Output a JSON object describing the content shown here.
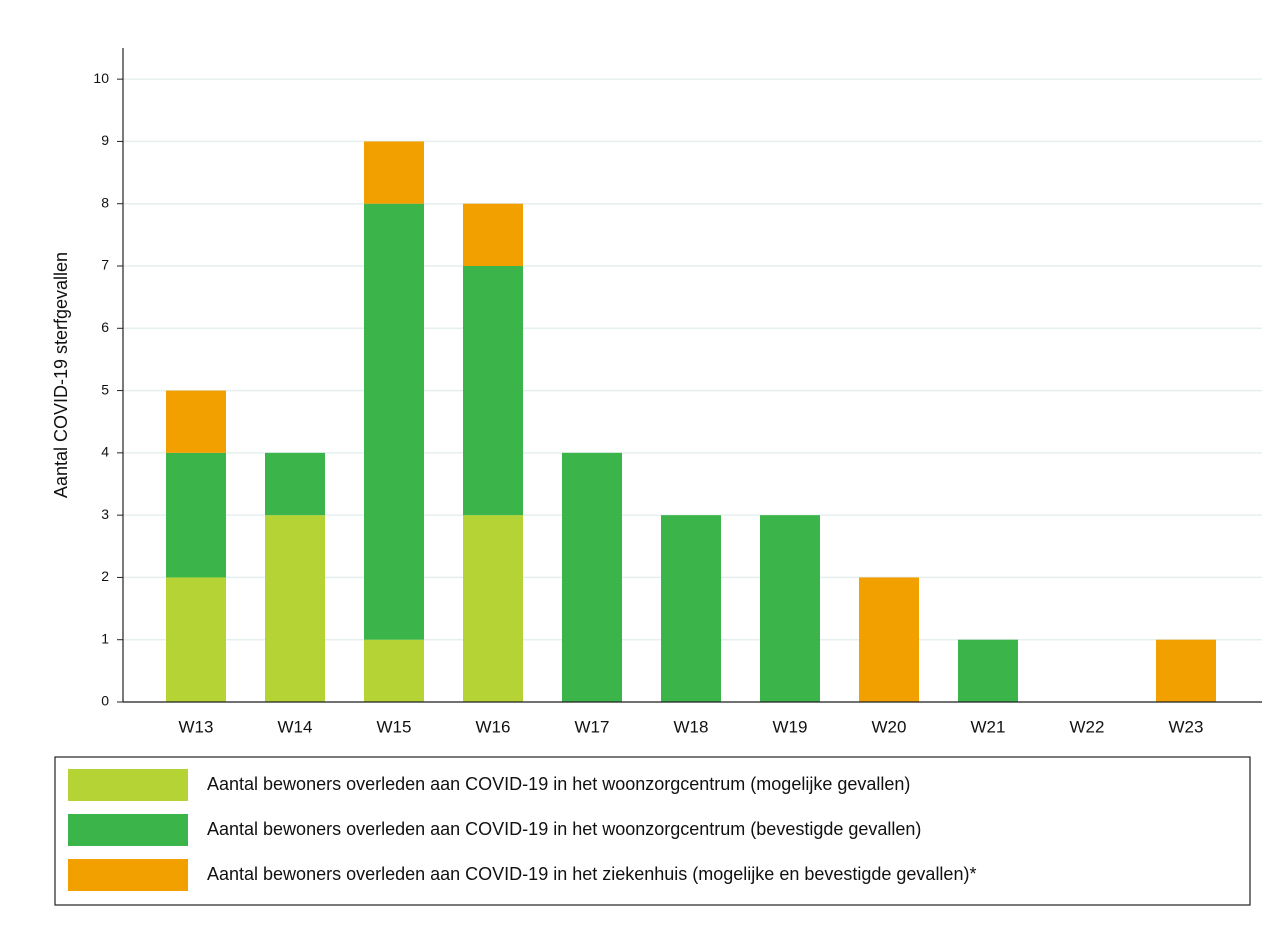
{
  "chart_data": {
    "type": "stacked_bar",
    "y_label": "Aantal COVID-19 sterfgevallen",
    "categories": [
      "W13",
      "W14",
      "W15",
      "W16",
      "W17",
      "W18",
      "W19",
      "W20",
      "W21",
      "W22",
      "W23"
    ],
    "series": [
      {
        "name": "Aantal bewoners overleden aan COVID-19 in het woonzorgcentrum (mogelijke gevallen)",
        "color": "#b5d334",
        "values": [
          2,
          3,
          1,
          3,
          0,
          0,
          0,
          0,
          0,
          0,
          0
        ]
      },
      {
        "name": "Aantal bewoners overleden aan COVID-19 in het woonzorgcentrum (bevestigde gevallen)",
        "color": "#3bb54a",
        "values": [
          2,
          1,
          7,
          4,
          4,
          3,
          3,
          0,
          1,
          0,
          0
        ]
      },
      {
        "name": "Aantal bewoners overleden aan COVID-19 in het ziekenhuis (mogelijke en bevestigde gevallen)*",
        "color": "#f29f00",
        "values": [
          1,
          0,
          1,
          1,
          0,
          0,
          0,
          2,
          0,
          0,
          1
        ]
      }
    ],
    "ylim": [
      0,
      10.5
    ],
    "yticks": [
      0,
      1,
      2,
      3,
      4,
      5,
      6,
      7,
      8,
      9,
      10
    ],
    "grid": true
  }
}
